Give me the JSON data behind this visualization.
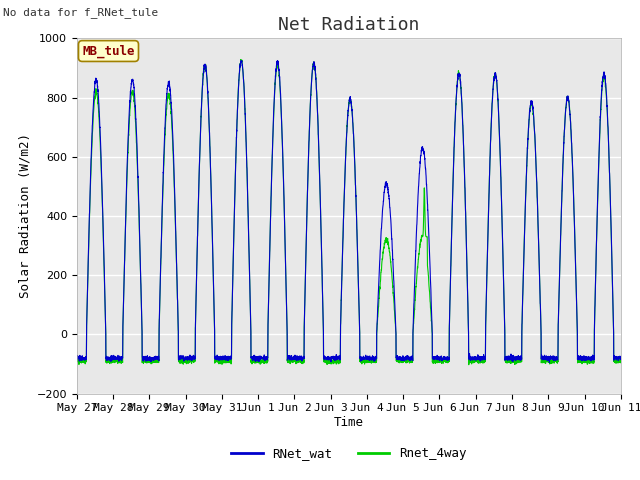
{
  "title": "Net Radiation",
  "xlabel": "Time",
  "ylabel": "Solar Radiation (W/m2)",
  "top_left_text": "No data for f_RNet_tule",
  "annotation_box": "MB_tule",
  "ylim": [
    -200,
    1000
  ],
  "xlim": [
    0,
    15
  ],
  "background_color": "#e8e8e8",
  "legend": [
    "RNet_wat",
    "Rnet_4way"
  ],
  "line_blue_color": "#0000cc",
  "line_green_color": "#00cc00",
  "x_tick_labels": [
    "May 27",
    "May 28",
    "May 29",
    "May 30",
    "May 31",
    "Jun 1",
    "Jun 2",
    "Jun 3",
    "Jun 4",
    "Jun 5",
    "Jun 6",
    "Jun 7",
    "Jun 8",
    "Jun 9",
    "Jun 10",
    "Jun 11"
  ],
  "figsize": [
    6.4,
    4.8
  ],
  "dpi": 100
}
